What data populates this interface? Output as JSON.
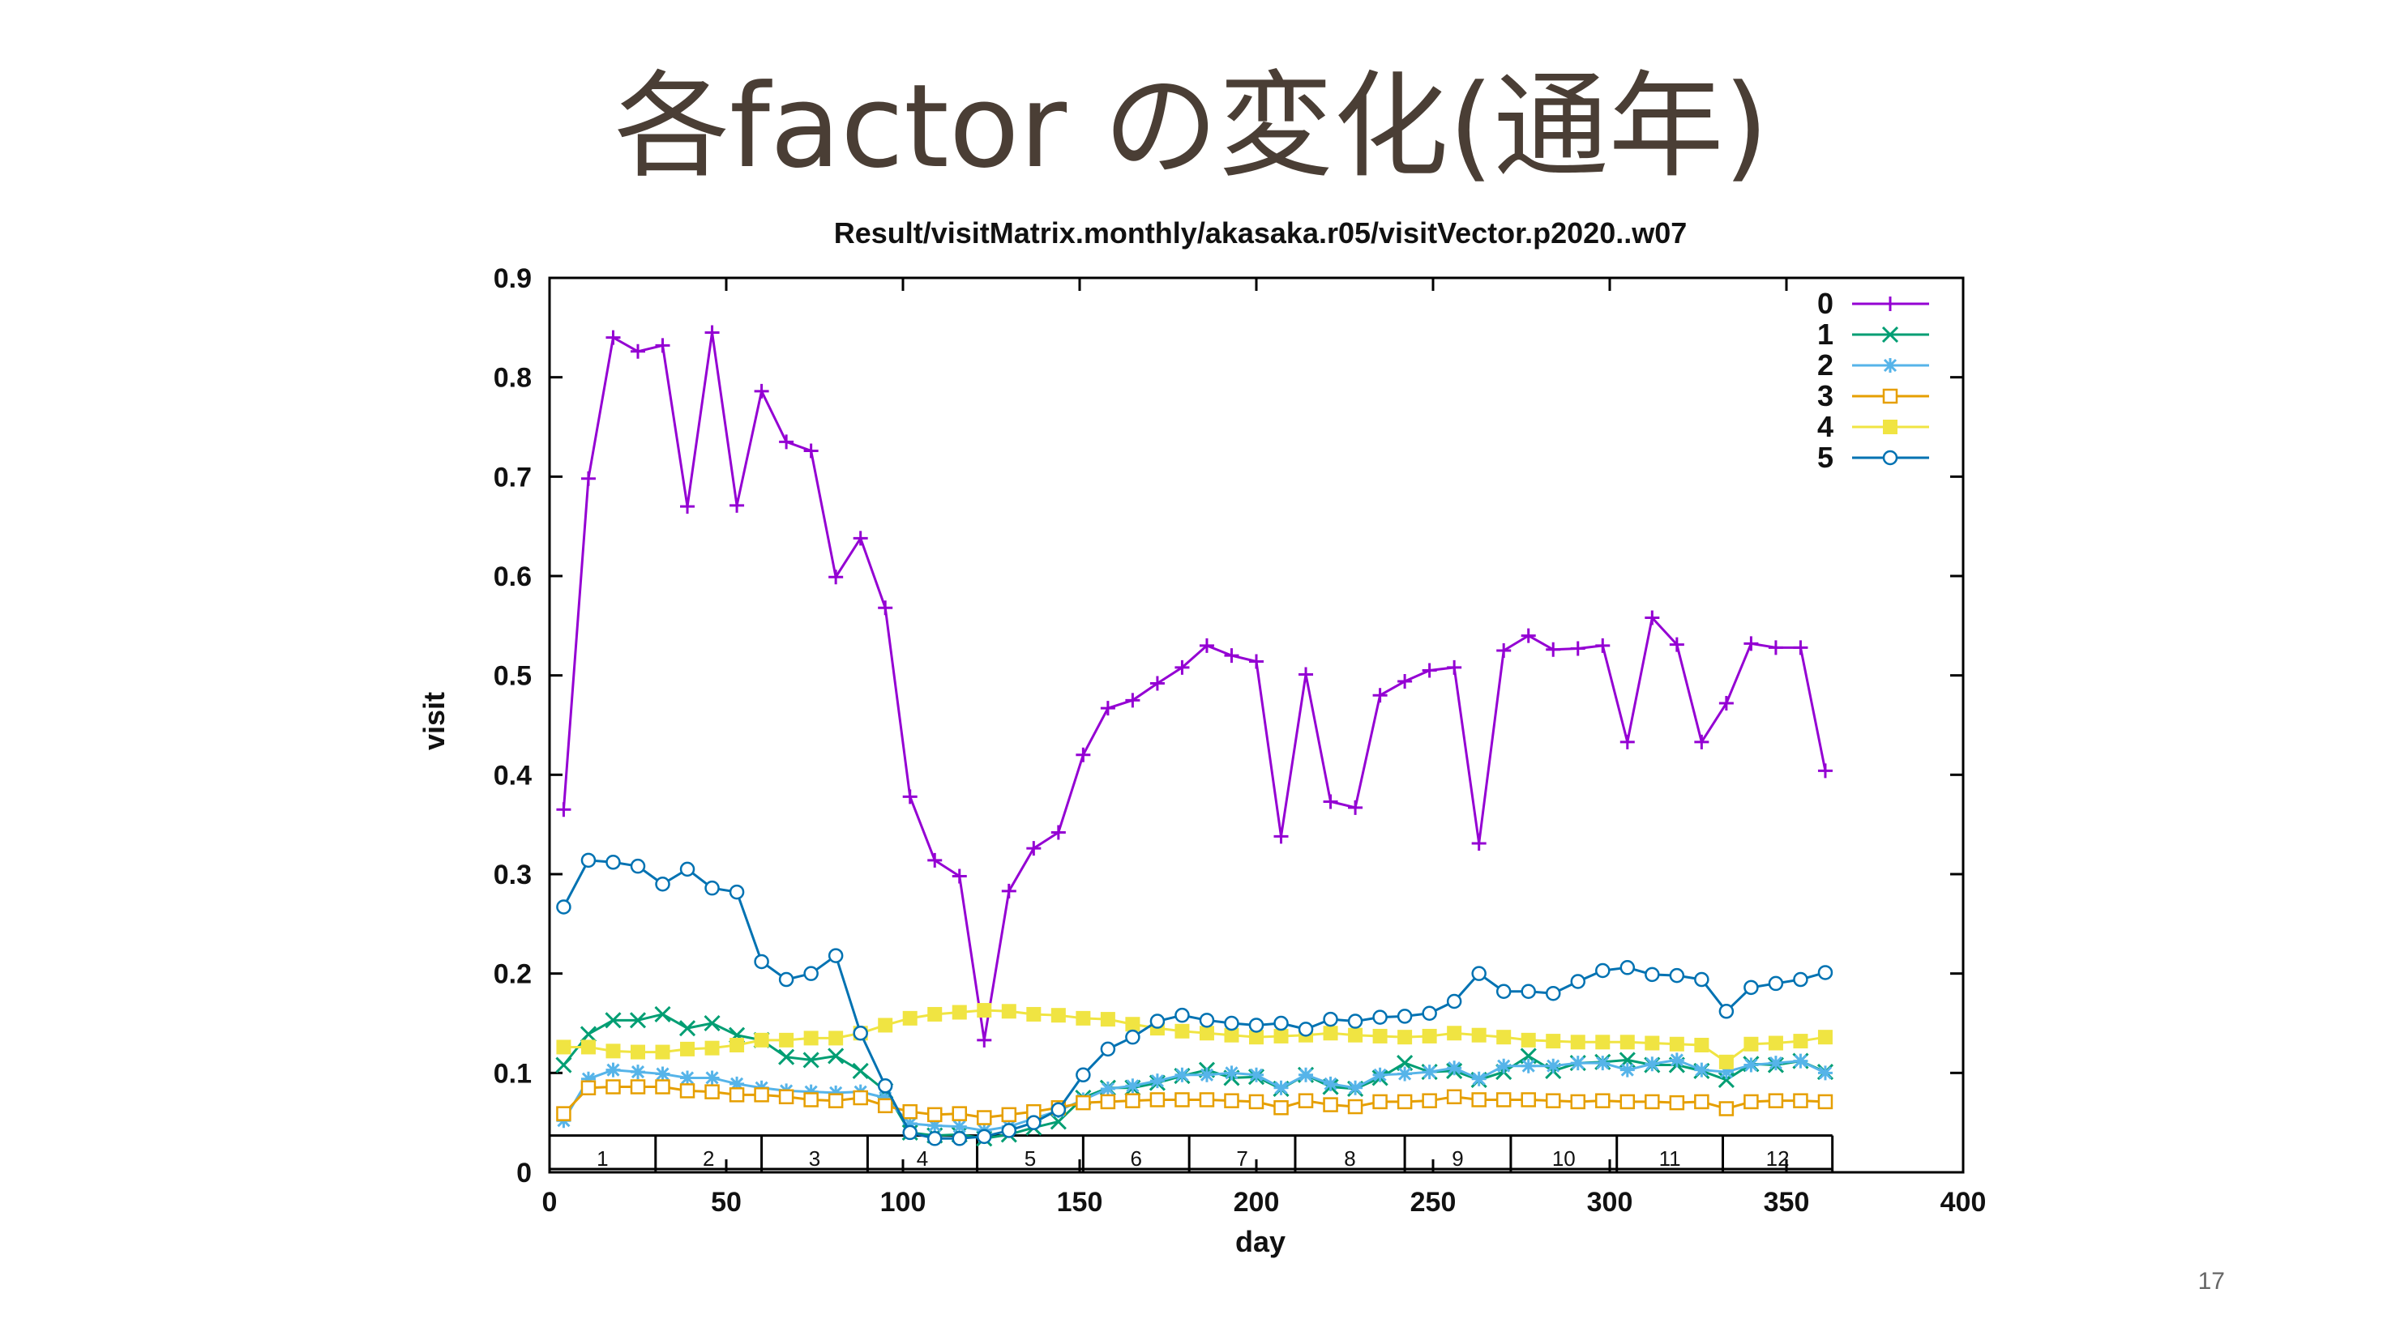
{
  "slide": {
    "title": "各factor の変化(通年)",
    "page_number": "17"
  },
  "chart_data": {
    "type": "line",
    "title": "Result/visitMatrix.monthly/akasaka.r05/visitVector.p2020..w07",
    "xlabel": "day",
    "ylabel": "visit",
    "xlim": [
      0,
      400
    ],
    "ylim": [
      0,
      0.9
    ],
    "x_ticks": [
      0,
      50,
      100,
      150,
      200,
      250,
      300,
      350,
      400
    ],
    "y_ticks": [
      0,
      0.1,
      0.2,
      0.3,
      0.4,
      0.5,
      0.6,
      0.7,
      0.8,
      0.9
    ],
    "grid": false,
    "legend_position": "top-right",
    "month_bands": {
      "labels": [
        "1",
        "2",
        "3",
        "4",
        "5",
        "6",
        "7",
        "8",
        "9",
        "10",
        "11",
        "12"
      ],
      "boundaries": [
        0,
        30,
        60,
        90,
        121,
        151,
        181,
        211,
        242,
        272,
        302,
        332,
        363
      ],
      "y_range": [
        0,
        0.037
      ]
    },
    "x": [
      4,
      11,
      18,
      25,
      32,
      39,
      46,
      53,
      60,
      67,
      74,
      81,
      88,
      95,
      102,
      109,
      116,
      123,
      130,
      137,
      144,
      151,
      158,
      165,
      172,
      179,
      186,
      193,
      200,
      207,
      214,
      221,
      228,
      235,
      242,
      249,
      256,
      263,
      270,
      277,
      284,
      291,
      298,
      305,
      312,
      319,
      326,
      333,
      340,
      347,
      354,
      361
    ],
    "series": [
      {
        "name": "0",
        "color": "#9400d3",
        "marker": "plus",
        "values": [
          0.365,
          0.698,
          0.84,
          0.826,
          0.832,
          0.67,
          0.845,
          0.671,
          0.786,
          0.735,
          0.726,
          0.599,
          0.638,
          0.568,
          0.378,
          0.314,
          0.298,
          0.133,
          0.283,
          0.326,
          0.342,
          0.42,
          0.467,
          0.475,
          0.492,
          0.508,
          0.53,
          0.52,
          0.514,
          0.338,
          0.501,
          0.373,
          0.367,
          0.48,
          0.494,
          0.505,
          0.508,
          0.331,
          0.525,
          0.54,
          0.526,
          0.527,
          0.53,
          0.433,
          0.558,
          0.531,
          0.433,
          0.472,
          0.532,
          0.528,
          0.528,
          0.404
        ]
      },
      {
        "name": "1",
        "color": "#009e73",
        "marker": "cross",
        "values": [
          0.108,
          0.139,
          0.153,
          0.153,
          0.159,
          0.145,
          0.15,
          0.138,
          0.133,
          0.116,
          0.113,
          0.117,
          0.102,
          0.082,
          0.04,
          0.037,
          0.038,
          0.034,
          0.038,
          0.045,
          0.051,
          0.075,
          0.085,
          0.085,
          0.09,
          0.097,
          0.103,
          0.095,
          0.096,
          0.084,
          0.098,
          0.086,
          0.084,
          0.095,
          0.11,
          0.101,
          0.102,
          0.093,
          0.101,
          0.117,
          0.102,
          0.11,
          0.111,
          0.113,
          0.108,
          0.108,
          0.102,
          0.093,
          0.109,
          0.108,
          0.112,
          0.101
        ]
      },
      {
        "name": "2",
        "color": "#56b4e9",
        "marker": "star",
        "values": [
          0.052,
          0.094,
          0.103,
          0.101,
          0.099,
          0.095,
          0.095,
          0.089,
          0.085,
          0.082,
          0.081,
          0.08,
          0.081,
          0.075,
          0.049,
          0.047,
          0.046,
          0.042,
          0.046,
          0.054,
          0.062,
          0.073,
          0.084,
          0.087,
          0.092,
          0.098,
          0.098,
          0.1,
          0.098,
          0.085,
          0.098,
          0.089,
          0.085,
          0.098,
          0.099,
          0.101,
          0.105,
          0.094,
          0.107,
          0.107,
          0.107,
          0.11,
          0.11,
          0.103,
          0.109,
          0.113,
          0.103,
          0.101,
          0.108,
          0.11,
          0.112,
          0.1
        ]
      },
      {
        "name": "3",
        "color": "#e69f00",
        "marker": "open-square",
        "values": [
          0.059,
          0.085,
          0.086,
          0.086,
          0.086,
          0.082,
          0.081,
          0.078,
          0.078,
          0.076,
          0.073,
          0.072,
          0.075,
          0.067,
          0.061,
          0.058,
          0.059,
          0.055,
          0.058,
          0.061,
          0.065,
          0.07,
          0.071,
          0.072,
          0.073,
          0.073,
          0.073,
          0.072,
          0.071,
          0.065,
          0.072,
          0.068,
          0.066,
          0.071,
          0.071,
          0.072,
          0.076,
          0.073,
          0.073,
          0.073,
          0.072,
          0.071,
          0.072,
          0.071,
          0.071,
          0.07,
          0.071,
          0.064,
          0.071,
          0.072,
          0.072,
          0.071
        ]
      },
      {
        "name": "4",
        "color": "#f0e442",
        "marker": "filled-square",
        "values": [
          0.126,
          0.126,
          0.122,
          0.121,
          0.121,
          0.124,
          0.125,
          0.128,
          0.133,
          0.133,
          0.135,
          0.135,
          0.14,
          0.148,
          0.155,
          0.159,
          0.161,
          0.163,
          0.162,
          0.159,
          0.158,
          0.155,
          0.154,
          0.149,
          0.145,
          0.142,
          0.14,
          0.138,
          0.136,
          0.137,
          0.138,
          0.14,
          0.138,
          0.137,
          0.136,
          0.137,
          0.14,
          0.138,
          0.136,
          0.133,
          0.132,
          0.131,
          0.131,
          0.131,
          0.13,
          0.129,
          0.128,
          0.111,
          0.129,
          0.13,
          0.132,
          0.136
        ]
      },
      {
        "name": "5",
        "color": "#0072b2",
        "marker": "open-circle",
        "values": [
          0.267,
          0.314,
          0.312,
          0.308,
          0.29,
          0.305,
          0.286,
          0.282,
          0.212,
          0.194,
          0.2,
          0.218,
          0.14,
          0.087,
          0.04,
          0.034,
          0.034,
          0.036,
          0.042,
          0.05,
          0.063,
          0.098,
          0.124,
          0.136,
          0.152,
          0.158,
          0.153,
          0.15,
          0.148,
          0.15,
          0.144,
          0.154,
          0.152,
          0.156,
          0.157,
          0.16,
          0.172,
          0.2,
          0.182,
          0.182,
          0.18,
          0.192,
          0.203,
          0.206,
          0.199,
          0.198,
          0.194,
          0.162,
          0.186,
          0.19,
          0.194,
          0.201
        ]
      }
    ]
  }
}
